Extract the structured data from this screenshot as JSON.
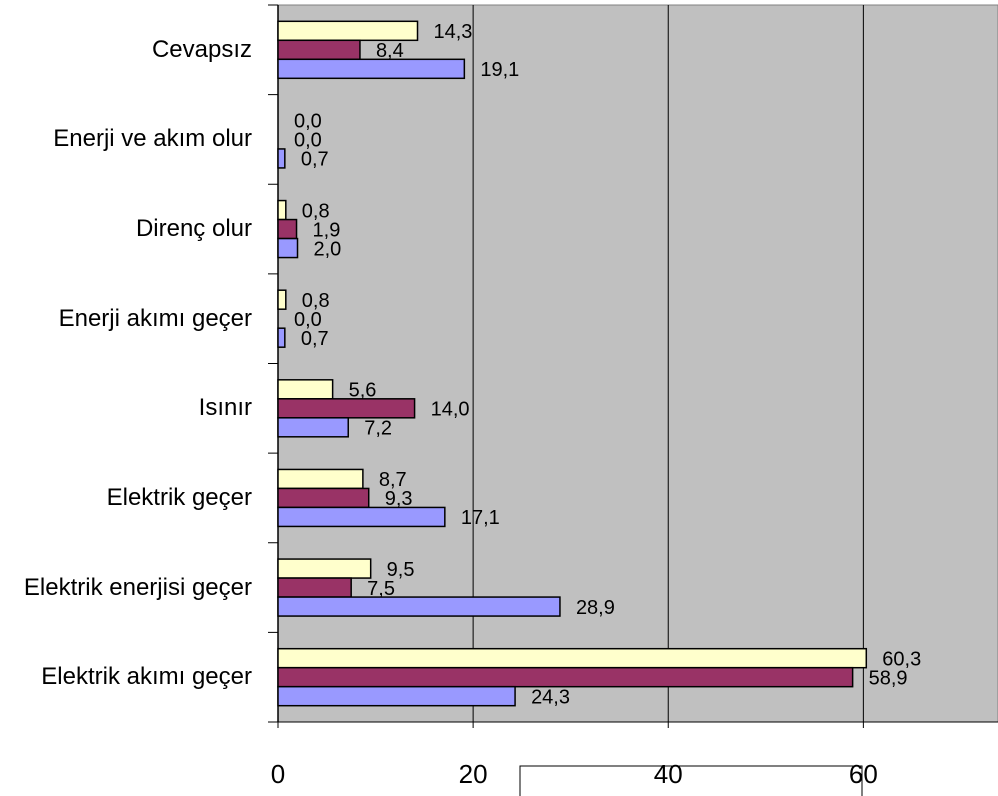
{
  "chart_data": {
    "type": "barh",
    "categories": [
      "Cevapsız",
      "Enerji ve akım olur",
      "Direnç olur",
      "Enerji akımı geçer",
      "Isınır",
      "Elektrik geçer",
      "Elektrik enerjisi geçer",
      "Elektrik akımı geçer"
    ],
    "series": [
      {
        "color": "#ffffcc",
        "values": [
          14.3,
          0.0,
          0.8,
          0.8,
          5.6,
          8.7,
          9.5,
          60.3
        ],
        "value_labels": [
          "14,3",
          "0,0",
          "0,8",
          "0,8",
          "5,6",
          "8,7",
          "9,5",
          "60,3"
        ]
      },
      {
        "color": "#993366",
        "values": [
          8.4,
          0.0,
          1.9,
          0.0,
          14.0,
          9.3,
          7.5,
          58.9
        ],
        "value_labels": [
          "8,4",
          "0,0",
          "1,9",
          "0,0",
          "14,0",
          "9,3",
          "7,5",
          "58,9"
        ]
      },
      {
        "color": "#9999ff",
        "values": [
          19.1,
          0.7,
          2.0,
          0.7,
          7.2,
          17.1,
          28.9,
          24.3
        ],
        "value_labels": [
          "19,1",
          "0,7",
          "2,0",
          "0,7",
          "7,2",
          "17,1",
          "28,9",
          "24,3"
        ]
      }
    ],
    "xlim": [
      0,
      73.8
    ],
    "xticks": [
      0,
      20,
      40,
      60
    ],
    "grid": true,
    "background": "#c0c0c0"
  }
}
